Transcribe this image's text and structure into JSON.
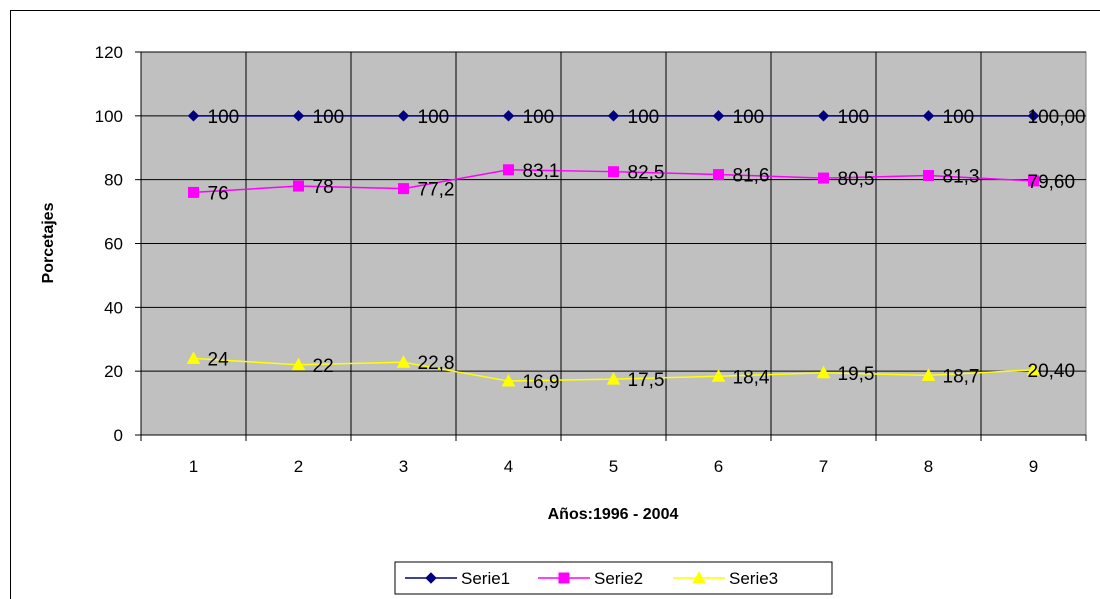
{
  "chart_data": {
    "type": "line",
    "title": "",
    "xlabel": "Años:1996 - 2004",
    "ylabel": "Porcetajes",
    "categories": [
      "1",
      "2",
      "3",
      "4",
      "5",
      "6",
      "7",
      "8",
      "9"
    ],
    "ylim": [
      0,
      120
    ],
    "yticks": [
      "0",
      "20",
      "40",
      "60",
      "80",
      "100",
      "120"
    ],
    "grid": true,
    "plot_background": "#C0C0C0",
    "legend_position": "bottom",
    "series": [
      {
        "name": "Serie1",
        "color": "#000080",
        "marker": "diamond",
        "values": [
          100,
          100,
          100,
          100,
          100,
          100,
          100,
          100,
          100
        ],
        "labels": [
          "100",
          "100",
          "100",
          "100",
          "100",
          "100",
          "100",
          "100",
          "100,00"
        ]
      },
      {
        "name": "Serie2",
        "color": "#FF00FF",
        "marker": "square",
        "values": [
          76,
          78,
          77.2,
          83.1,
          82.5,
          81.6,
          80.5,
          81.3,
          79.6
        ],
        "labels": [
          "76",
          "78",
          "77,2",
          "83,1",
          "82,5",
          "81,6",
          "80,5",
          "81,3",
          "79,60"
        ]
      },
      {
        "name": "Serie3",
        "color": "#FFFF00",
        "marker": "triangle",
        "values": [
          24,
          22,
          22.8,
          16.9,
          17.5,
          18.4,
          19.5,
          18.7,
          20.4
        ],
        "labels": [
          "24",
          "22",
          "22,8",
          "16,9",
          "17,5",
          "18,4",
          "19,5",
          "18,7",
          "20,40"
        ]
      }
    ]
  }
}
